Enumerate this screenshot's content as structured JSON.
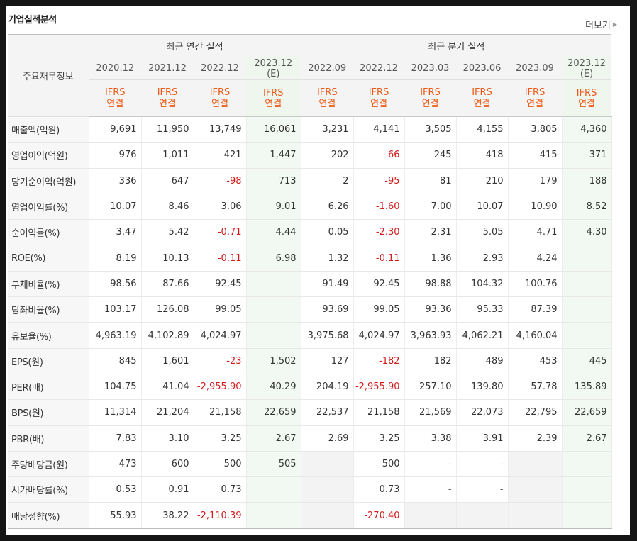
{
  "title": "기업실적분석",
  "more_label": "더보기",
  "header": {
    "row_header": "주요재무정보",
    "annual_group": "최근 연간 실적",
    "quarter_group": "최근 분기 실적",
    "periods": [
      {
        "label": "2020.12",
        "est": ""
      },
      {
        "label": "2021.12",
        "est": ""
      },
      {
        "label": "2022.12",
        "est": ""
      },
      {
        "label": "2023.12",
        "est": "(E)"
      },
      {
        "label": "2022.09",
        "est": ""
      },
      {
        "label": "2022.12",
        "est": ""
      },
      {
        "label": "2023.03",
        "est": ""
      },
      {
        "label": "2023.06",
        "est": ""
      },
      {
        "label": "2023.09",
        "est": ""
      },
      {
        "label": "2023.12",
        "est": "(E)"
      }
    ],
    "standard_line1": "IFRS",
    "standard_line2": "연결"
  },
  "colors": {
    "negative": "#d21c1c",
    "ifrs": "#ee5a16",
    "estimate_bg": "#f2f9f2"
  },
  "rows": [
    {
      "label": "매출액(억원)",
      "values": [
        "9,691",
        "11,950",
        "13,749",
        "16,061",
        "3,231",
        "4,141",
        "3,505",
        "4,155",
        "3,805",
        "4,360"
      ]
    },
    {
      "label": "영업이익(억원)",
      "values": [
        "976",
        "1,011",
        "421",
        "1,447",
        "202",
        "-66",
        "245",
        "418",
        "415",
        "371"
      ]
    },
    {
      "label": "당기순이익(억원)",
      "values": [
        "336",
        "647",
        "-98",
        "713",
        "2",
        "-95",
        "81",
        "210",
        "179",
        "188"
      ]
    },
    {
      "label": "영업이익률(%)",
      "values": [
        "10.07",
        "8.46",
        "3.06",
        "9.01",
        "6.26",
        "-1.60",
        "7.00",
        "10.07",
        "10.90",
        "8.52"
      ]
    },
    {
      "label": "순이익률(%)",
      "values": [
        "3.47",
        "5.42",
        "-0.71",
        "4.44",
        "0.05",
        "-2.30",
        "2.31",
        "5.05",
        "4.71",
        "4.30"
      ]
    },
    {
      "label": "ROE(%)",
      "values": [
        "8.19",
        "10.13",
        "-0.11",
        "6.98",
        "1.32",
        "-0.11",
        "1.36",
        "2.93",
        "4.24",
        ""
      ]
    },
    {
      "label": "부채비율(%)",
      "values": [
        "98.56",
        "87.66",
        "92.45",
        "",
        "91.49",
        "92.45",
        "98.88",
        "104.32",
        "100.76",
        ""
      ]
    },
    {
      "label": "당좌비율(%)",
      "values": [
        "103.17",
        "126.08",
        "99.05",
        "",
        "93.69",
        "99.05",
        "93.36",
        "95.33",
        "87.39",
        ""
      ]
    },
    {
      "label": "유보율(%)",
      "values": [
        "4,963.19",
        "4,102.89",
        "4,024.97",
        "",
        "3,975.68",
        "4,024.97",
        "3,963.93",
        "4,062.21",
        "4,160.04",
        ""
      ]
    },
    {
      "label": "EPS(원)",
      "values": [
        "845",
        "1,601",
        "-23",
        "1,502",
        "127",
        "-182",
        "182",
        "489",
        "453",
        "445"
      ]
    },
    {
      "label": "PER(배)",
      "values": [
        "104.75",
        "41.04",
        "-2,955.90",
        "40.29",
        "204.19",
        "-2,955.90",
        "257.10",
        "139.80",
        "57.78",
        "135.89"
      ]
    },
    {
      "label": "BPS(원)",
      "values": [
        "11,314",
        "21,204",
        "21,158",
        "22,659",
        "22,537",
        "21,158",
        "21,569",
        "22,073",
        "22,795",
        "22,659"
      ]
    },
    {
      "label": "PBR(배)",
      "values": [
        "7.83",
        "3.10",
        "3.25",
        "2.67",
        "2.69",
        "3.25",
        "3.38",
        "3.91",
        "2.39",
        "2.67"
      ]
    },
    {
      "label": "주당배당금(원)",
      "values": [
        "473",
        "600",
        "500",
        "505",
        "",
        "500",
        "-",
        "-",
        "",
        ""
      ]
    },
    {
      "label": "시가배당률(%)",
      "values": [
        "0.53",
        "0.91",
        "0.73",
        "",
        "",
        "0.73",
        "-",
        "-",
        "",
        ""
      ]
    },
    {
      "label": "배당성향(%)",
      "values": [
        "55.93",
        "38.22",
        "-2,110.39",
        "",
        "",
        "-270.40",
        "",
        "",
        "",
        ""
      ]
    }
  ]
}
